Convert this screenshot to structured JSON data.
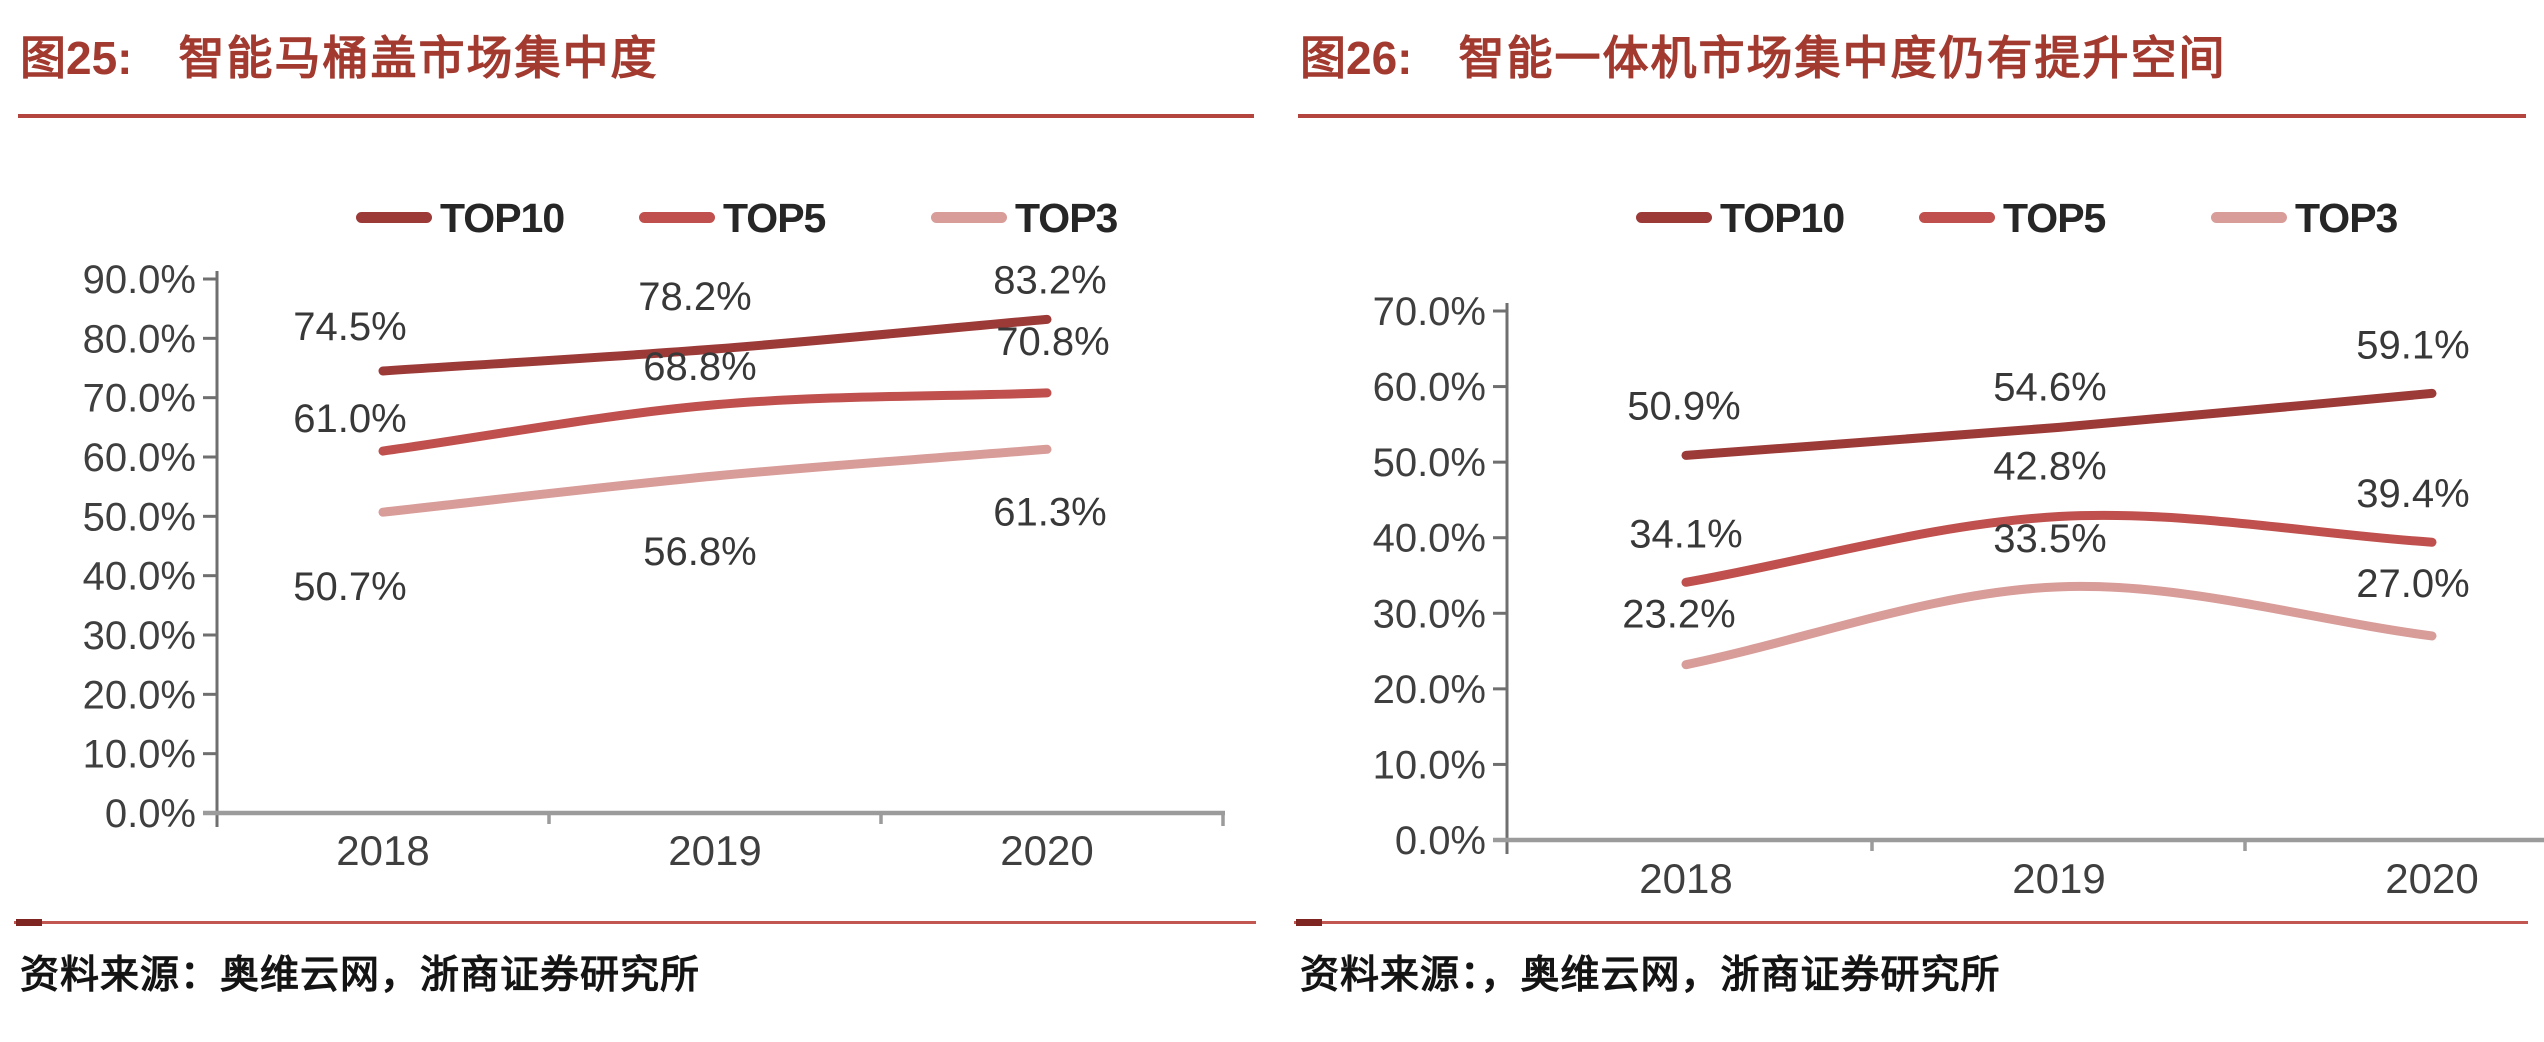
{
  "page": {
    "background": "#ffffff"
  },
  "colors": {
    "title_red": "#a23a30",
    "rule_red": "#b4443e",
    "divider_red": "#c25751",
    "divider_cap": "#7e2522",
    "x_axis_line": "#9b9b9b",
    "y_axis_line": "#6f6f6f",
    "tick_label": "#3f3f3f",
    "data_label": "#383838",
    "legend_text": "#262626",
    "source_text": "#141414"
  },
  "panels": [
    {
      "fig_label": "图25:",
      "title": "智能马桶盖市场集中度",
      "source": "资料来源：奥维云网，浙商证券研究所"
    },
    {
      "fig_label": "图26:",
      "title": "智能一体机市场集中度仍有提升空间",
      "source": "资料来源：，奥维云网，浙商证券研究所"
    }
  ],
  "chart_data": [
    {
      "type": "line",
      "title": "智能马桶盖市场集中度",
      "categories": [
        "2018",
        "2019",
        "2020"
      ],
      "series": [
        {
          "name": "TOP10",
          "values": [
            74.5,
            78.2,
            83.2
          ],
          "labels": [
            "74.5%",
            "78.2%",
            "83.2%"
          ],
          "color": "#9c3a38"
        },
        {
          "name": "TOP5",
          "values": [
            61.0,
            68.8,
            70.8
          ],
          "labels": [
            "61.0%",
            "68.8%",
            "70.8%"
          ],
          "color": "#c0504d"
        },
        {
          "name": "TOP3",
          "values": [
            50.7,
            56.8,
            61.3
          ],
          "labels": [
            "50.7%",
            "56.8%",
            "61.3%"
          ],
          "color": "#d89c99"
        }
      ],
      "xlabel": "",
      "ylabel": "",
      "ylim": [
        0,
        90
      ],
      "y_ticks": [
        0,
        10,
        20,
        30,
        40,
        50,
        60,
        70,
        80,
        90
      ],
      "y_tick_labels": [
        "0.0%",
        "10.0%",
        "20.0%",
        "30.0%",
        "40.0%",
        "50.0%",
        "60.0%",
        "70.0%",
        "80.0%",
        "90.0%"
      ],
      "legend_position": "top",
      "grid": false,
      "data_labels": true
    },
    {
      "type": "line",
      "title": "智能一体机市场集中度仍有提升空间",
      "categories": [
        "2018",
        "2019",
        "2020"
      ],
      "series": [
        {
          "name": "TOP10",
          "values": [
            50.9,
            54.6,
            59.1
          ],
          "labels": [
            "50.9%",
            "54.6%",
            "59.1%"
          ],
          "color": "#9c3a38"
        },
        {
          "name": "TOP5",
          "values": [
            34.1,
            42.8,
            39.4
          ],
          "labels": [
            "34.1%",
            "42.8%",
            "39.4%"
          ],
          "color": "#c0504d"
        },
        {
          "name": "TOP3",
          "values": [
            23.2,
            33.5,
            27.0
          ],
          "labels": [
            "23.2%",
            "33.5%",
            "27.0%"
          ],
          "color": "#d89c99"
        }
      ],
      "xlabel": "",
      "ylabel": "",
      "ylim": [
        0,
        70
      ],
      "y_ticks": [
        0,
        10,
        20,
        30,
        40,
        50,
        60,
        70
      ],
      "y_tick_labels": [
        "0.0%",
        "10.0%",
        "20.0%",
        "30.0%",
        "40.0%",
        "50.0%",
        "60.0%",
        "70.0%"
      ],
      "legend_position": "top",
      "grid": false,
      "data_labels": true
    }
  ]
}
